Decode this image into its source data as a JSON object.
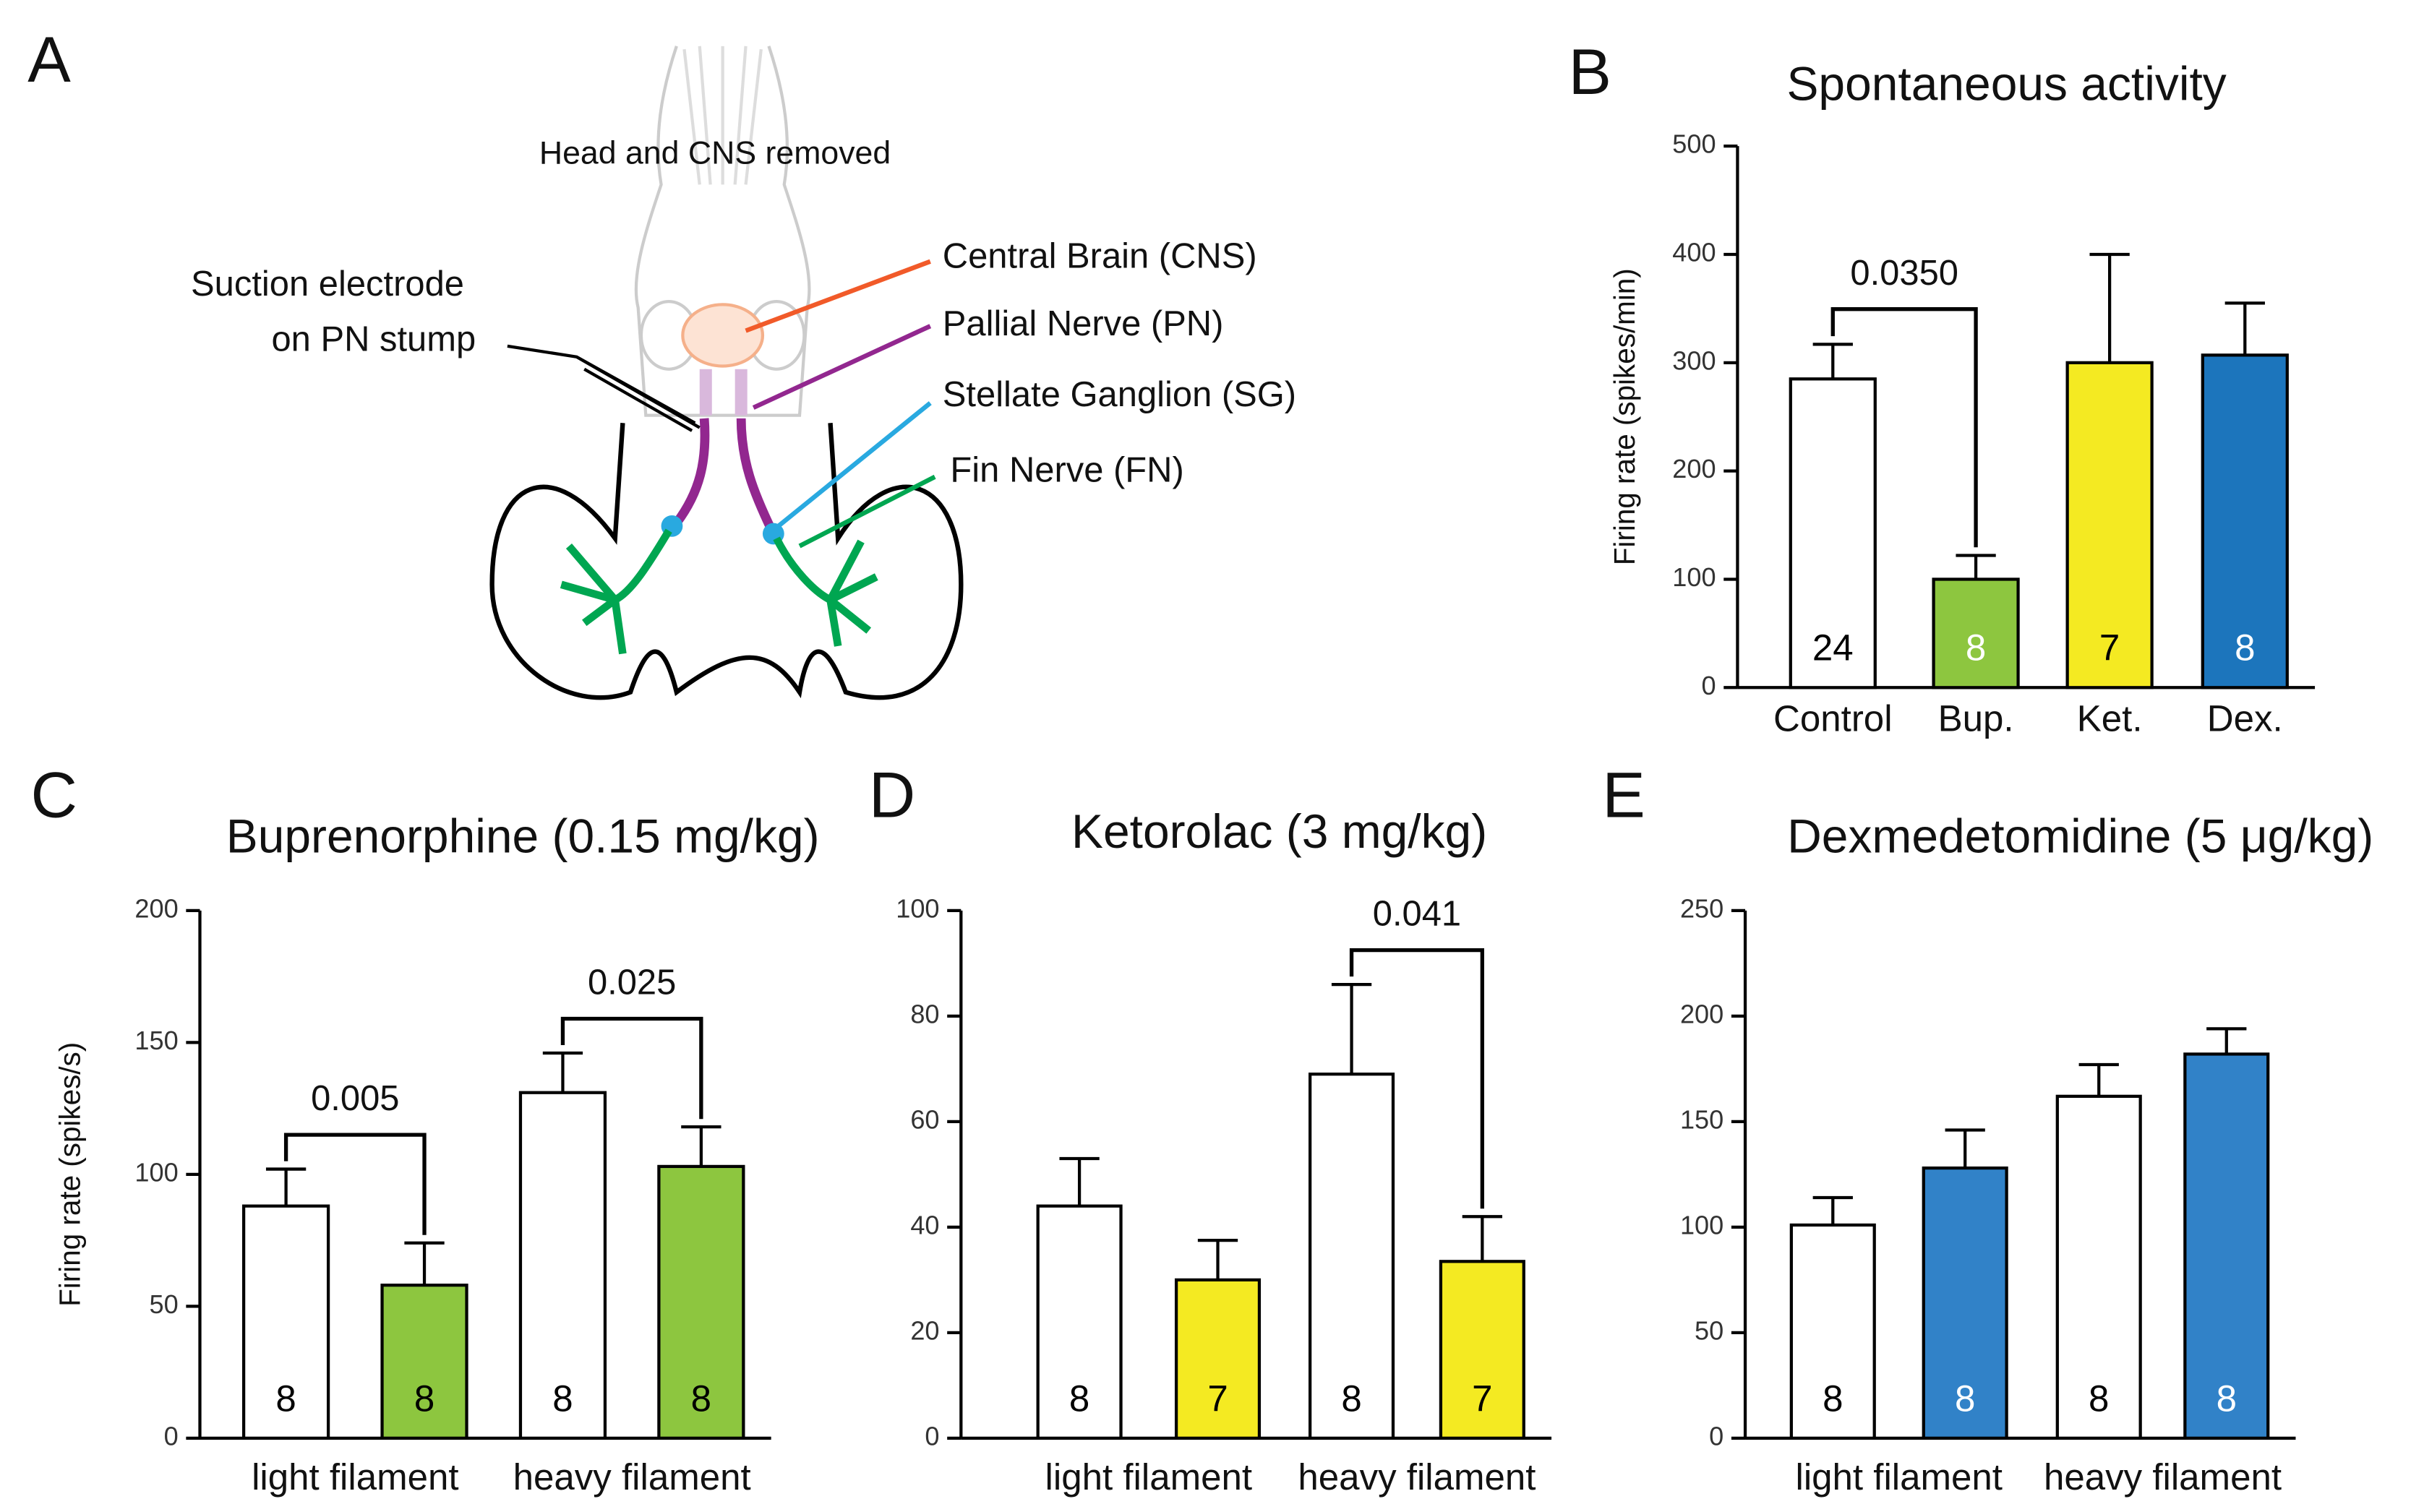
{
  "diagram": {
    "panel": "A",
    "head_note": "Head and CNS removed",
    "electrode": [
      "Suction electrode",
      "on PN stump"
    ],
    "labels": [
      "Central Brain (CNS)",
      "Pallial Nerve (PN)",
      "Stellate Ganglion (SG)",
      "Fin Nerve (FN)"
    ]
  },
  "chart_data": [
    {
      "panel": "B",
      "type": "bar",
      "title": "Spontaneous activity",
      "ylabel": "Firing rate (spikes/min)",
      "categories": [
        "Control",
        "Bup.",
        "Ket.",
        "Dex."
      ],
      "values": [
        285,
        100,
        300,
        307
      ],
      "errors": [
        32,
        22,
        100,
        48
      ],
      "counts": [
        24,
        8,
        7,
        8
      ],
      "colors": [
        "#ffffff",
        "#8dc63f",
        "#f4ea22",
        "#1c75bc"
      ],
      "count_colors": [
        "#000000",
        "#ffffff",
        "#000000",
        "#ffffff"
      ],
      "ylim": [
        0,
        500
      ],
      "yticks": [
        0,
        100,
        200,
        300,
        400,
        500
      ],
      "annotations": [
        {
          "text": "0.0350",
          "bars": [
            0,
            1
          ]
        }
      ]
    },
    {
      "panel": "C",
      "type": "bar",
      "title": "Buprenorphine (0.15 mg/kg)",
      "ylabel": "Firing rate (spikes/s)",
      "groups": [
        "light filament",
        "heavy filament"
      ],
      "values": [
        88,
        58,
        131,
        103
      ],
      "errors": [
        14,
        16,
        15,
        15
      ],
      "counts": [
        8,
        8,
        8,
        8
      ],
      "colors": [
        "#ffffff",
        "#8dc63f",
        "#ffffff",
        "#8dc63f"
      ],
      "count_colors": [
        "#000000",
        "#000000",
        "#000000",
        "#000000"
      ],
      "ylim": [
        0,
        200
      ],
      "yticks": [
        0,
        50,
        100,
        150,
        200
      ],
      "annotations": [
        {
          "text": "0.005",
          "bars": [
            0,
            1
          ]
        },
        {
          "text": "0.025",
          "bars": [
            2,
            3
          ]
        }
      ]
    },
    {
      "panel": "D",
      "type": "bar",
      "title": "Ketorolac (3 mg/kg)",
      "groups": [
        "light filament",
        "heavy filament"
      ],
      "values": [
        44,
        30,
        69,
        33.5
      ],
      "errors": [
        9,
        7.5,
        17,
        8.5
      ],
      "counts": [
        8,
        7,
        8,
        7
      ],
      "colors": [
        "#ffffff",
        "#f4ea22",
        "#ffffff",
        "#f4ea22"
      ],
      "count_colors": [
        "#000000",
        "#000000",
        "#000000",
        "#000000"
      ],
      "ylim": [
        0,
        100
      ],
      "yticks": [
        0,
        20,
        40,
        60,
        80,
        100
      ],
      "annotations": [
        {
          "text": "0.041",
          "bars": [
            2,
            3
          ]
        }
      ]
    },
    {
      "panel": "E",
      "type": "bar",
      "title": "Dexmedetomidine (5 μg/kg)",
      "groups": [
        "light filament",
        "heavy filament"
      ],
      "values": [
        101,
        128,
        162,
        182
      ],
      "errors": [
        13,
        18,
        15,
        12
      ],
      "counts": [
        8,
        8,
        8,
        8
      ],
      "colors": [
        "#ffffff",
        "#3182c8",
        "#ffffff",
        "#3182c8"
      ],
      "count_colors": [
        "#000000",
        "#ffffff",
        "#000000",
        "#ffffff"
      ],
      "ylim": [
        0,
        250
      ],
      "yticks": [
        0,
        50,
        100,
        150,
        200,
        250
      ],
      "annotations": []
    }
  ]
}
